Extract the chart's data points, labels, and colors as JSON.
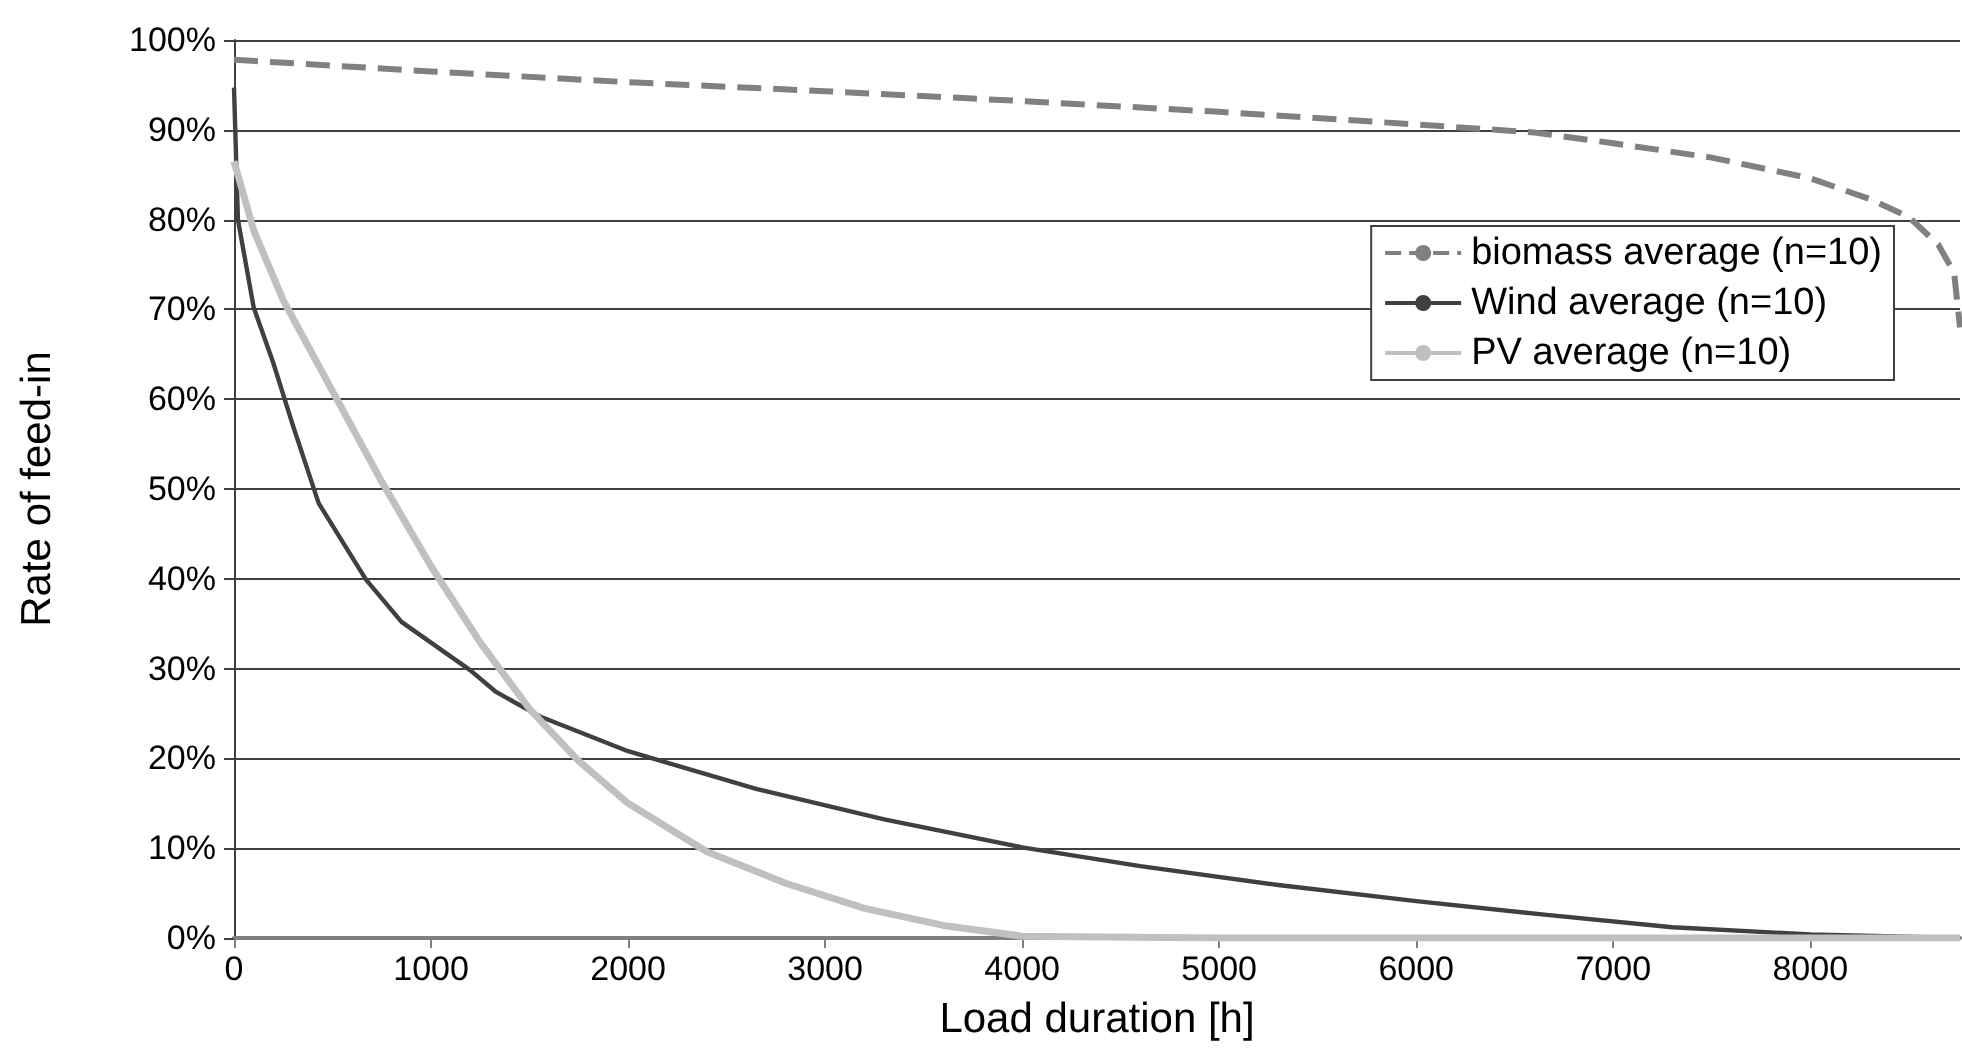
{
  "chart_data": {
    "type": "line",
    "xlabel": "Load duration [h]",
    "ylabel": "Rate of feed-in",
    "xlim": [
      0,
      8760
    ],
    "xticks": [
      0,
      1000,
      2000,
      3000,
      4000,
      5000,
      6000,
      7000,
      8000
    ],
    "ylim": [
      0,
      100
    ],
    "yticks": [
      {
        "value": 0,
        "label": "0%"
      },
      {
        "value": 10,
        "label": "10%"
      },
      {
        "value": 20,
        "label": "20%"
      },
      {
        "value": 30,
        "label": "30%"
      },
      {
        "value": 40,
        "label": "40%"
      },
      {
        "value": 50,
        "label": "50%"
      },
      {
        "value": 60,
        "label": "60%"
      },
      {
        "value": 70,
        "label": "70%"
      },
      {
        "value": 80,
        "label": "80%"
      },
      {
        "value": 90,
        "label": "90%"
      },
      {
        "value": 100,
        "label": "100%"
      }
    ],
    "grid": "y",
    "legend": "right",
    "marker": "none",
    "series": [
      {
        "name": "biomass average (n=10)",
        "color": "#808080",
        "line_style": "dashed",
        "x": [
          0,
          1000,
          2000,
          3000,
          4000,
          5000,
          6000,
          6600,
          7000,
          7500,
          8000,
          8300,
          8500,
          8650,
          8730,
          8760
        ],
        "values": [
          97.8,
          96.5,
          95.3,
          94.3,
          93.2,
          92,
          90.6,
          89.7,
          88.5,
          86.9,
          84.6,
          82.3,
          80.3,
          77.2,
          74.1,
          68
        ]
      },
      {
        "name": "Wind average (n=10)",
        "color": "#404040",
        "line_style": "solid",
        "x": [
          0,
          20,
          100,
          200,
          300,
          430,
          670,
          850,
          1200,
          1330,
          1550,
          2000,
          2650,
          3300,
          4000,
          4600,
          5300,
          6000,
          6650,
          7300,
          8000,
          8760
        ],
        "values": [
          94.7,
          80,
          70.2,
          64,
          57,
          48.4,
          39.9,
          35.2,
          29.8,
          27.4,
          24.7,
          20.8,
          16.6,
          13.2,
          10.1,
          8,
          5.9,
          4.1,
          2.6,
          1.2,
          0.4,
          0
        ]
      },
      {
        "name": "PV average (n=10)",
        "color": "#c0c0c0",
        "line_style": "solid",
        "x": [
          0,
          100,
          250,
          500,
          750,
          1000,
          1250,
          1500,
          1750,
          2000,
          2400,
          2800,
          3200,
          3600,
          4000,
          5000,
          8760
        ],
        "values": [
          86.5,
          78.8,
          71,
          60.9,
          50.8,
          41.4,
          32.9,
          25.5,
          19.7,
          15,
          9.6,
          6.1,
          3.3,
          1.4,
          0.2,
          0,
          0
        ]
      }
    ]
  }
}
